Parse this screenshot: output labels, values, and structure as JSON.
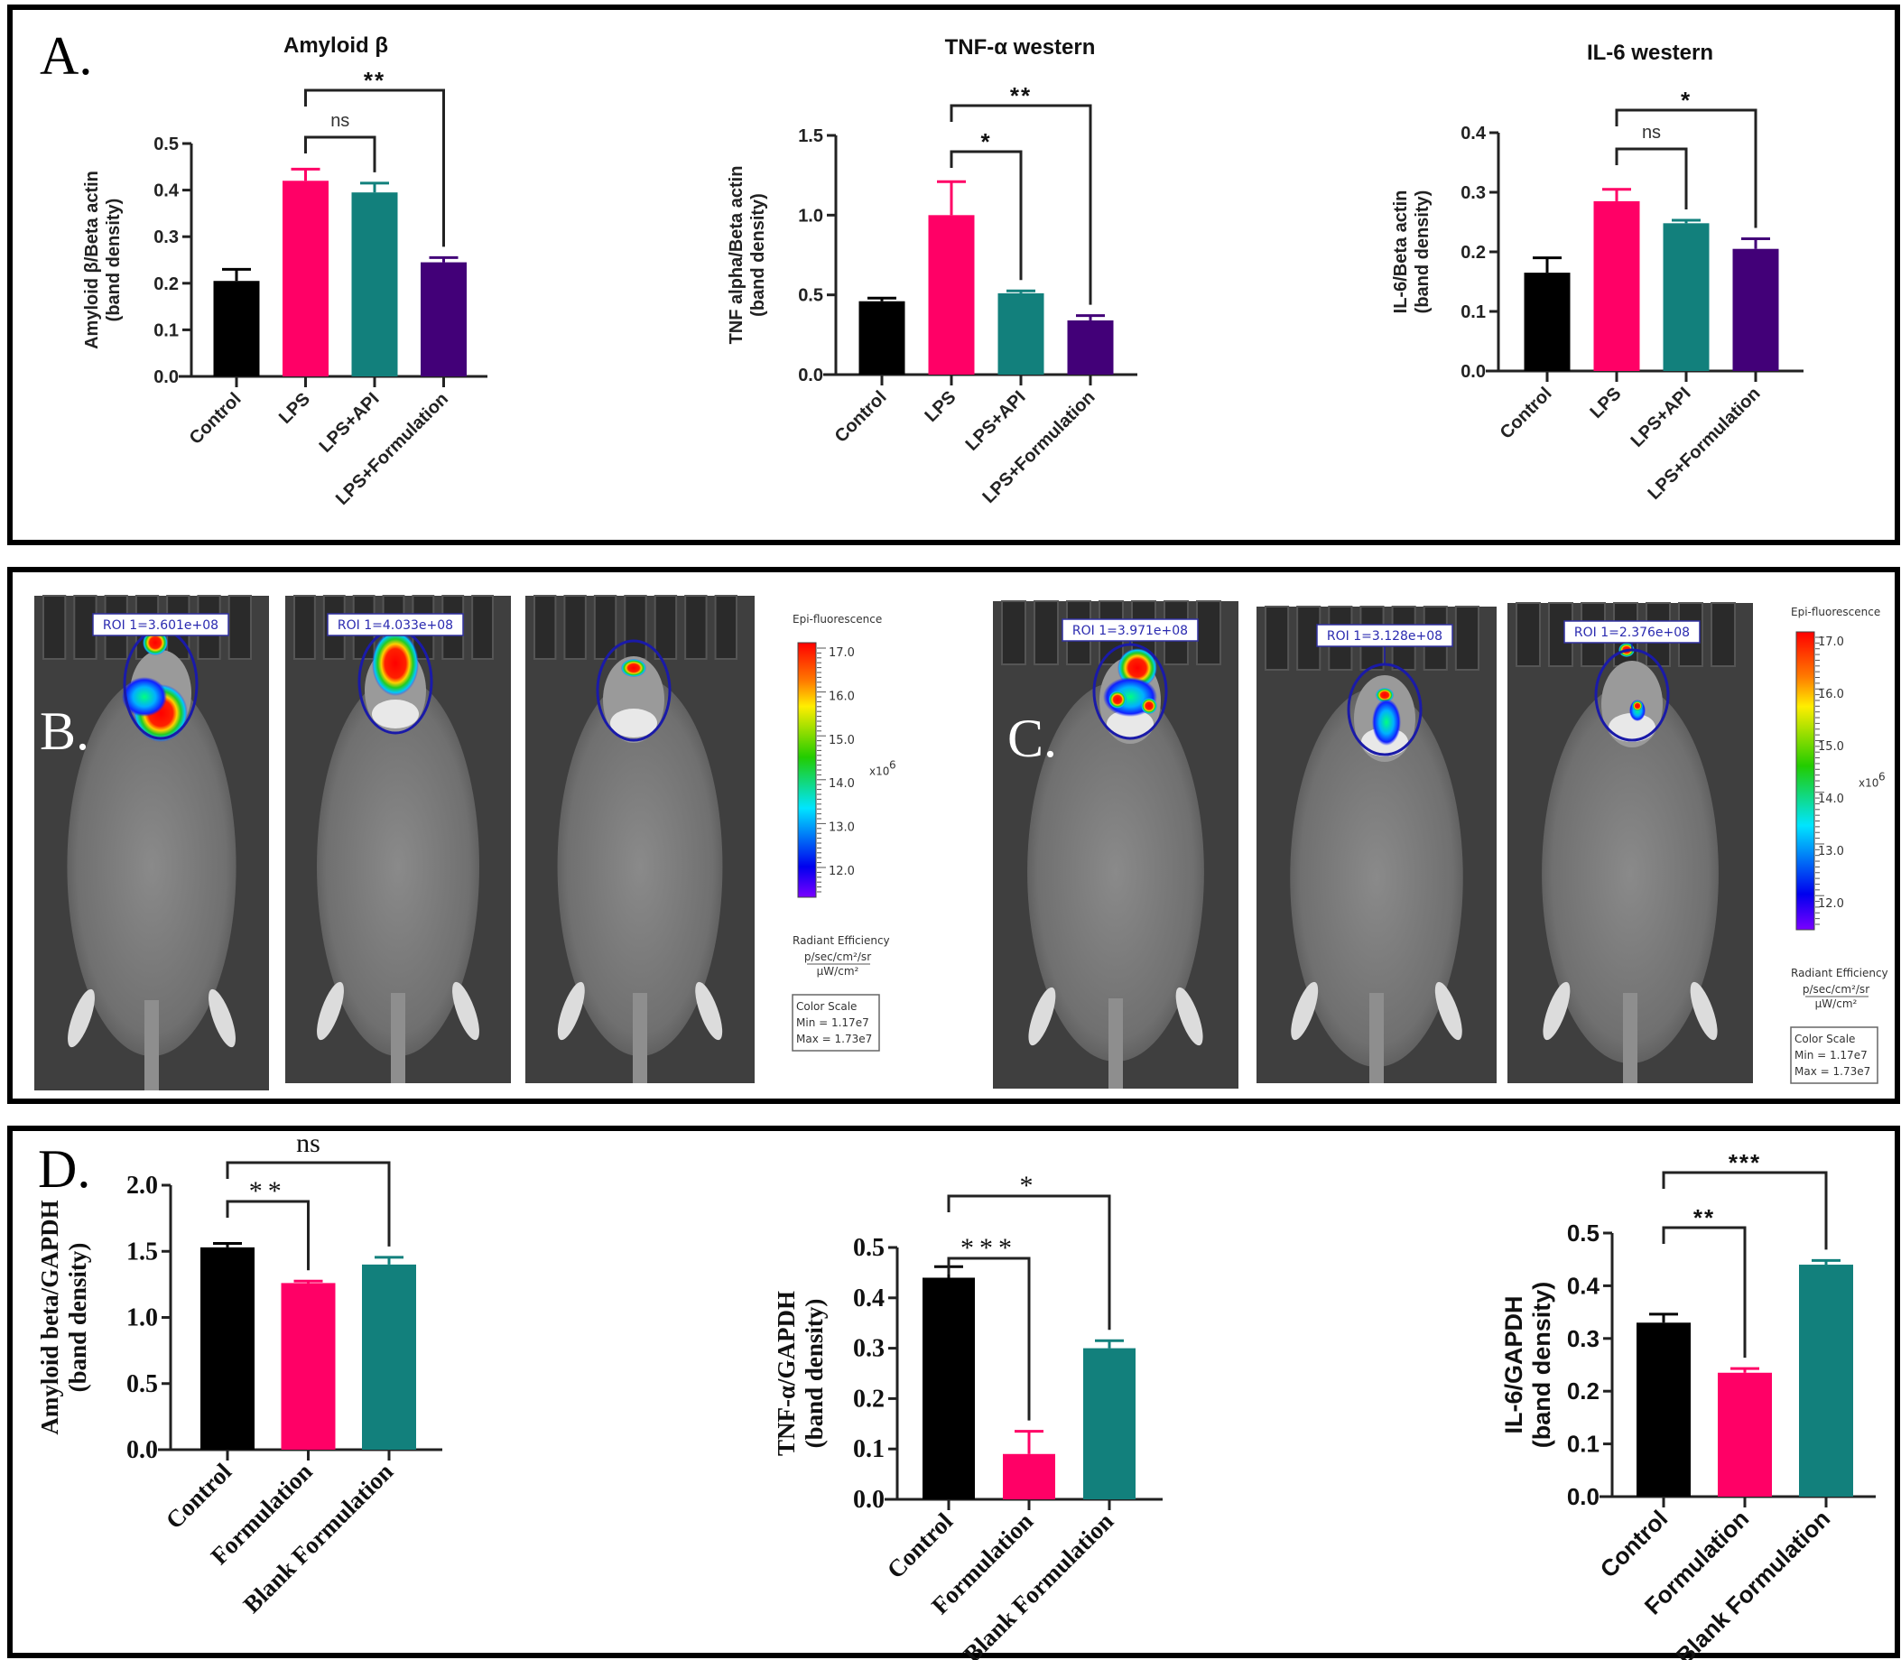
{
  "panels": {
    "A": {
      "label": "A."
    },
    "B": {
      "label": "B."
    },
    "C": {
      "label": "C."
    },
    "D": {
      "label": "D."
    }
  },
  "colors": {
    "Control": "#000000",
    "LPS": "#ff0066",
    "LPS+API": "#12807c",
    "LPS+Formulation": "#420078",
    "Formulation": "#ff0066",
    "Blank Formulation": "#12807c"
  },
  "imaging": {
    "B": {
      "rois": [
        "ROI 1=3.601e+08",
        "ROI 1=4.033e+08",
        ""
      ],
      "colorbar": {
        "title": "Epi-fluorescence",
        "ticks": [
          "17.0",
          "16.0",
          "15.0",
          "14.0",
          "13.0",
          "12.0"
        ],
        "multiplier": "x10",
        "multiplier_exp": "6",
        "unit_title": "Radiant Efficiency",
        "unit_num": "p/sec/cm²/sr",
        "unit_den": "µW/cm²",
        "scale_title": "Color Scale",
        "scale_min": "Min = 1.17e7",
        "scale_max": "Max = 1.73e7"
      }
    },
    "C": {
      "rois": [
        "ROI 1=3.971e+08",
        "ROI 1=3.128e+08",
        "ROI 1=2.376e+08"
      ],
      "colorbar": {
        "title": "Epi-fluorescence",
        "ticks": [
          "17.0",
          "16.0",
          "15.0",
          "14.0",
          "13.0",
          "12.0"
        ],
        "multiplier": "x10",
        "multiplier_exp": "6",
        "unit_title": "Radiant Efficiency",
        "unit_num": "p/sec/cm²/sr",
        "unit_den": "µW/cm²",
        "scale_title": "Color Scale",
        "scale_min": "Min = 1.17e7",
        "scale_max": "Max = 1.73e7"
      }
    }
  },
  "chart_data": [
    {
      "id": "A1",
      "type": "bar",
      "title": "Amyloid β",
      "ylabel": "Amyloid β/Beta actin",
      "ylabel2": "(band density)",
      "categories": [
        "Control",
        "LPS",
        "LPS+API",
        "LPS+Formulation"
      ],
      "values": [
        0.205,
        0.42,
        0.395,
        0.245
      ],
      "errors": [
        0.025,
        0.025,
        0.02,
        0.01
      ],
      "ylim": [
        0,
        0.5
      ],
      "yticks": [
        "0.0",
        "0.1",
        "0.2",
        "0.3",
        "0.4",
        "0.5"
      ],
      "comparisons": [
        {
          "from": "LPS",
          "to": "LPS+API",
          "label": "ns"
        },
        {
          "from": "LPS",
          "to": "LPS+Formulation",
          "label": "**"
        }
      ]
    },
    {
      "id": "A2",
      "type": "bar",
      "title": "TNF-α western",
      "ylabel": "TNF alpha/Beta actin",
      "ylabel2": "(band density)",
      "categories": [
        "Control",
        "LPS",
        "LPS+API",
        "LPS+Formulation"
      ],
      "values": [
        0.46,
        1.0,
        0.51,
        0.34
      ],
      "errors": [
        0.02,
        0.21,
        0.015,
        0.03
      ],
      "ylim": [
        0,
        1.5
      ],
      "yticks": [
        "0.0",
        "0.5",
        "1.0",
        "1.5"
      ],
      "comparisons": [
        {
          "from": "LPS",
          "to": "LPS+API",
          "label": "*"
        },
        {
          "from": "LPS",
          "to": "LPS+Formulation",
          "label": "**"
        }
      ]
    },
    {
      "id": "A3",
      "type": "bar",
      "title": "IL-6 western",
      "ylabel": "IL-6/Beta actin",
      "ylabel2": "(band density)",
      "categories": [
        "Control",
        "LPS",
        "LPS+API",
        "LPS+Formulation"
      ],
      "values": [
        0.165,
        0.285,
        0.248,
        0.205
      ],
      "errors": [
        0.025,
        0.02,
        0.005,
        0.017
      ],
      "ylim": [
        0,
        0.4
      ],
      "yticks": [
        "0.0",
        "0.1",
        "0.2",
        "0.3",
        "0.4"
      ],
      "comparisons": [
        {
          "from": "LPS",
          "to": "LPS+API",
          "label": "ns"
        },
        {
          "from": "LPS",
          "to": "LPS+Formulation",
          "label": "*"
        }
      ]
    },
    {
      "id": "D1",
      "type": "bar",
      "title": "",
      "ylabel": "Amyloid beta/GAPDH",
      "ylabel2": "(band density)",
      "categories": [
        "Control",
        "Formulation",
        "Blank Formulation"
      ],
      "values": [
        1.53,
        1.26,
        1.4
      ],
      "errors": [
        0.03,
        0.015,
        0.055
      ],
      "ylim": [
        0,
        2.0
      ],
      "yticks": [
        "0.0",
        "0.5",
        "1.0",
        "1.5",
        "2.0"
      ],
      "comparisons": [
        {
          "from": "Control",
          "to": "Formulation",
          "label": "**"
        },
        {
          "from": "Control",
          "to": "Blank Formulation",
          "label": "ns"
        }
      ]
    },
    {
      "id": "D2",
      "type": "bar",
      "title": "",
      "ylabel": "TNF-α/GAPDH",
      "ylabel2": "(band density)",
      "categories": [
        "Control",
        "Formulation",
        "Blank Formulation"
      ],
      "values": [
        0.44,
        0.09,
        0.3
      ],
      "errors": [
        0.022,
        0.045,
        0.015
      ],
      "ylim": [
        0,
        0.5
      ],
      "yticks": [
        "0.0",
        "0.1",
        "0.2",
        "0.3",
        "0.4",
        "0.5"
      ],
      "comparisons": [
        {
          "from": "Control",
          "to": "Formulation",
          "label": "***"
        },
        {
          "from": "Control",
          "to": "Blank Formulation",
          "label": "*"
        }
      ]
    },
    {
      "id": "D3",
      "type": "bar",
      "title": "",
      "ylabel": "IL-6/GAPDH",
      "ylabel2": "(band density)",
      "categories": [
        "Control",
        "Formulation",
        "Blank Formulation"
      ],
      "values": [
        0.33,
        0.235,
        0.44
      ],
      "errors": [
        0.016,
        0.008,
        0.008
      ],
      "ylim": [
        0,
        0.5
      ],
      "yticks": [
        "0.0",
        "0.1",
        "0.2",
        "0.3",
        "0.4",
        "0.5"
      ],
      "comparisons": [
        {
          "from": "Control",
          "to": "Formulation",
          "label": "**"
        },
        {
          "from": "Control",
          "to": "Blank Formulation",
          "label": "***"
        }
      ]
    }
  ]
}
